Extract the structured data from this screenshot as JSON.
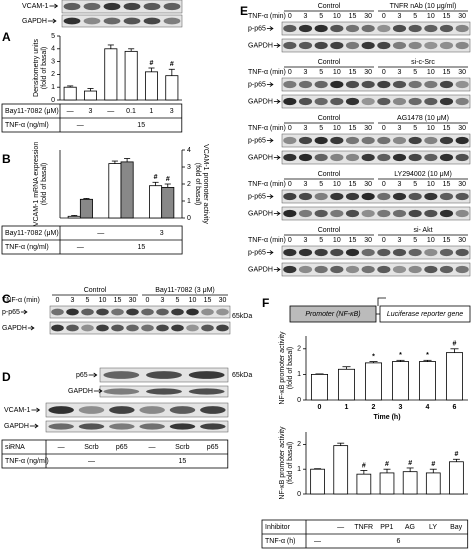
{
  "panel_a": {
    "label": "A",
    "blots": [
      "VCAM-1",
      "GAPDH"
    ],
    "chart": {
      "type": "bar",
      "y_label": "Densitometry units (fold of basal)",
      "ylim": [
        0,
        5
      ],
      "yticks": [
        0,
        1,
        2,
        3,
        4,
        5
      ],
      "color": "#ffffff",
      "values": [
        1.0,
        0.7,
        4.0,
        3.8,
        2.2,
        1.9
      ],
      "errors": [
        0.1,
        0.2,
        0.3,
        0.2,
        0.3,
        0.5
      ],
      "annotations": [
        null,
        null,
        null,
        null,
        "#",
        "#"
      ]
    },
    "table": [
      {
        "label": "Bay11-7082 (μM)",
        "cells": [
          "—",
          "3",
          "—",
          "0.1",
          "1",
          "3"
        ]
      },
      {
        "label": "TNF-α (ng/ml)",
        "cells": [
          "—",
          "15"
        ]
      }
    ]
  },
  "panel_b": {
    "label": "B",
    "chart": {
      "type": "bar",
      "y_label": "VCAM-1 mRNA expression (fold of basal)",
      "y2_label": "VCAM-1 promoter activity (fold of basal)",
      "ylim": [
        0,
        40
      ],
      "y2lim": [
        0,
        4
      ],
      "y2ticks": [
        0,
        1,
        2,
        3,
        4
      ],
      "series": [
        {
          "color": "#ffffff",
          "values": [
            1,
            32,
            19
          ],
          "errors": [
            0.5,
            1.5,
            2
          ],
          "annotations": [
            null,
            null,
            "#"
          ]
        },
        {
          "color": "#888888",
          "axis": "y2",
          "values": [
            1.1,
            3.3,
            1.8
          ],
          "errors": [
            0.05,
            0.2,
            0.2
          ],
          "annotations": [
            null,
            null,
            "#"
          ]
        }
      ]
    },
    "table": [
      {
        "label": "Bay11-7082 (μM)",
        "cells": [
          "—",
          "3"
        ]
      },
      {
        "label": "TNF-α (ng/ml)",
        "cells": [
          "—",
          "15"
        ]
      }
    ]
  },
  "panel_c": {
    "label": "C",
    "groups": [
      "Control",
      "Bay11-7082 (3 μM)"
    ],
    "time_label": "TNF-α (min)",
    "lanes": [
      0,
      3,
      5,
      10,
      15,
      30,
      0,
      3,
      5,
      10,
      15,
      30
    ],
    "blots": [
      "p-p65",
      "GAPDH"
    ],
    "size": "65kDa"
  },
  "panel_d": {
    "label": "D",
    "blots": [
      "p65",
      "GAPDH",
      "VCAM-1",
      "GAPDH"
    ],
    "size": "65kDa",
    "table": [
      {
        "label": "siRNA",
        "cells": [
          "—",
          "Scrb",
          "p65",
          "—",
          "Scrb",
          "p65"
        ]
      },
      {
        "label": "TNF-α (ng/ml)",
        "cells": [
          "—",
          "15"
        ]
      }
    ]
  },
  "panel_e": {
    "label": "E",
    "blocks": [
      {
        "groups": [
          "Control",
          "TNFR nAb (10 μg/ml)"
        ],
        "time_label": "TNF-α (min)",
        "lanes": [
          0,
          3,
          5,
          10,
          15,
          30,
          0,
          3,
          5,
          10,
          15,
          30
        ],
        "blots": [
          "p-p65",
          "GAPDH"
        ]
      },
      {
        "groups": [
          "Control",
          "si-c-Src"
        ],
        "time_label": "TNF-α (min)",
        "lanes": [
          0,
          3,
          5,
          10,
          15,
          30,
          0,
          3,
          5,
          10,
          15,
          30
        ],
        "blots": [
          "p-p65",
          "GAPDH"
        ]
      },
      {
        "groups": [
          "Control",
          "AG1478 (10 μM)"
        ],
        "time_label": "TNF-α (min)",
        "lanes": [
          0,
          3,
          5,
          10,
          15,
          30,
          0,
          3,
          5,
          10,
          15,
          30
        ],
        "blots": [
          "p-p65",
          "GAPDH"
        ]
      },
      {
        "groups": [
          "Control",
          "LY294002 (10 μM)"
        ],
        "time_label": "TNF-α (min)",
        "lanes": [
          0,
          3,
          5,
          10,
          15,
          30,
          0,
          3,
          5,
          10,
          15,
          30
        ],
        "blots": [
          "p-p65",
          "GAPDH"
        ]
      },
      {
        "groups": [
          "Control",
          "si- Akt"
        ],
        "time_label": "TNF-α (min)",
        "lanes": [
          0,
          3,
          5,
          10,
          15,
          30,
          0,
          3,
          5,
          10,
          15,
          30
        ],
        "blots": [
          "p-p65",
          "GAPDH"
        ]
      }
    ]
  },
  "panel_f": {
    "label": "F",
    "promoter": "Promoter (NF-κB)",
    "reporter": "Luciferase reporter gene",
    "time_chart": {
      "type": "bar",
      "y_label": "NF-κB promoter activity (fold of basal)",
      "x_label": "Time (h)",
      "ylim": [
        0,
        2.5
      ],
      "yticks": [
        0,
        1,
        2
      ],
      "color": "#ffffff",
      "categories": [
        0,
        1,
        2,
        3,
        4,
        6
      ],
      "values": [
        1.0,
        1.2,
        1.45,
        1.5,
        1.5,
        1.85
      ],
      "errors": [
        0.02,
        0.1,
        0.05,
        0.05,
        0.05,
        0.15
      ],
      "annotations": [
        null,
        null,
        "*",
        "*",
        "*",
        "#"
      ]
    },
    "inhibitor_chart": {
      "type": "bar",
      "y_label": "NF-κB promoter activity (fold of basal)",
      "ylim": [
        0,
        2.5
      ],
      "yticks": [
        0,
        1,
        2
      ],
      "color": "#ffffff",
      "values": [
        1.0,
        1.95,
        0.8,
        0.85,
        0.9,
        0.85,
        1.3
      ],
      "errors": [
        0.02,
        0.1,
        0.15,
        0.15,
        0.15,
        0.15,
        0.1
      ],
      "annotations": [
        null,
        null,
        "#",
        "#",
        "#",
        "#",
        "#"
      ]
    },
    "table": [
      {
        "label": "Inhibitor",
        "cells": [
          "—",
          "TNFR",
          "PP1",
          "AG",
          "LY",
          "Bay"
        ]
      },
      {
        "label": "TNF-α (h)",
        "cells": [
          "—",
          "6"
        ]
      }
    ]
  }
}
